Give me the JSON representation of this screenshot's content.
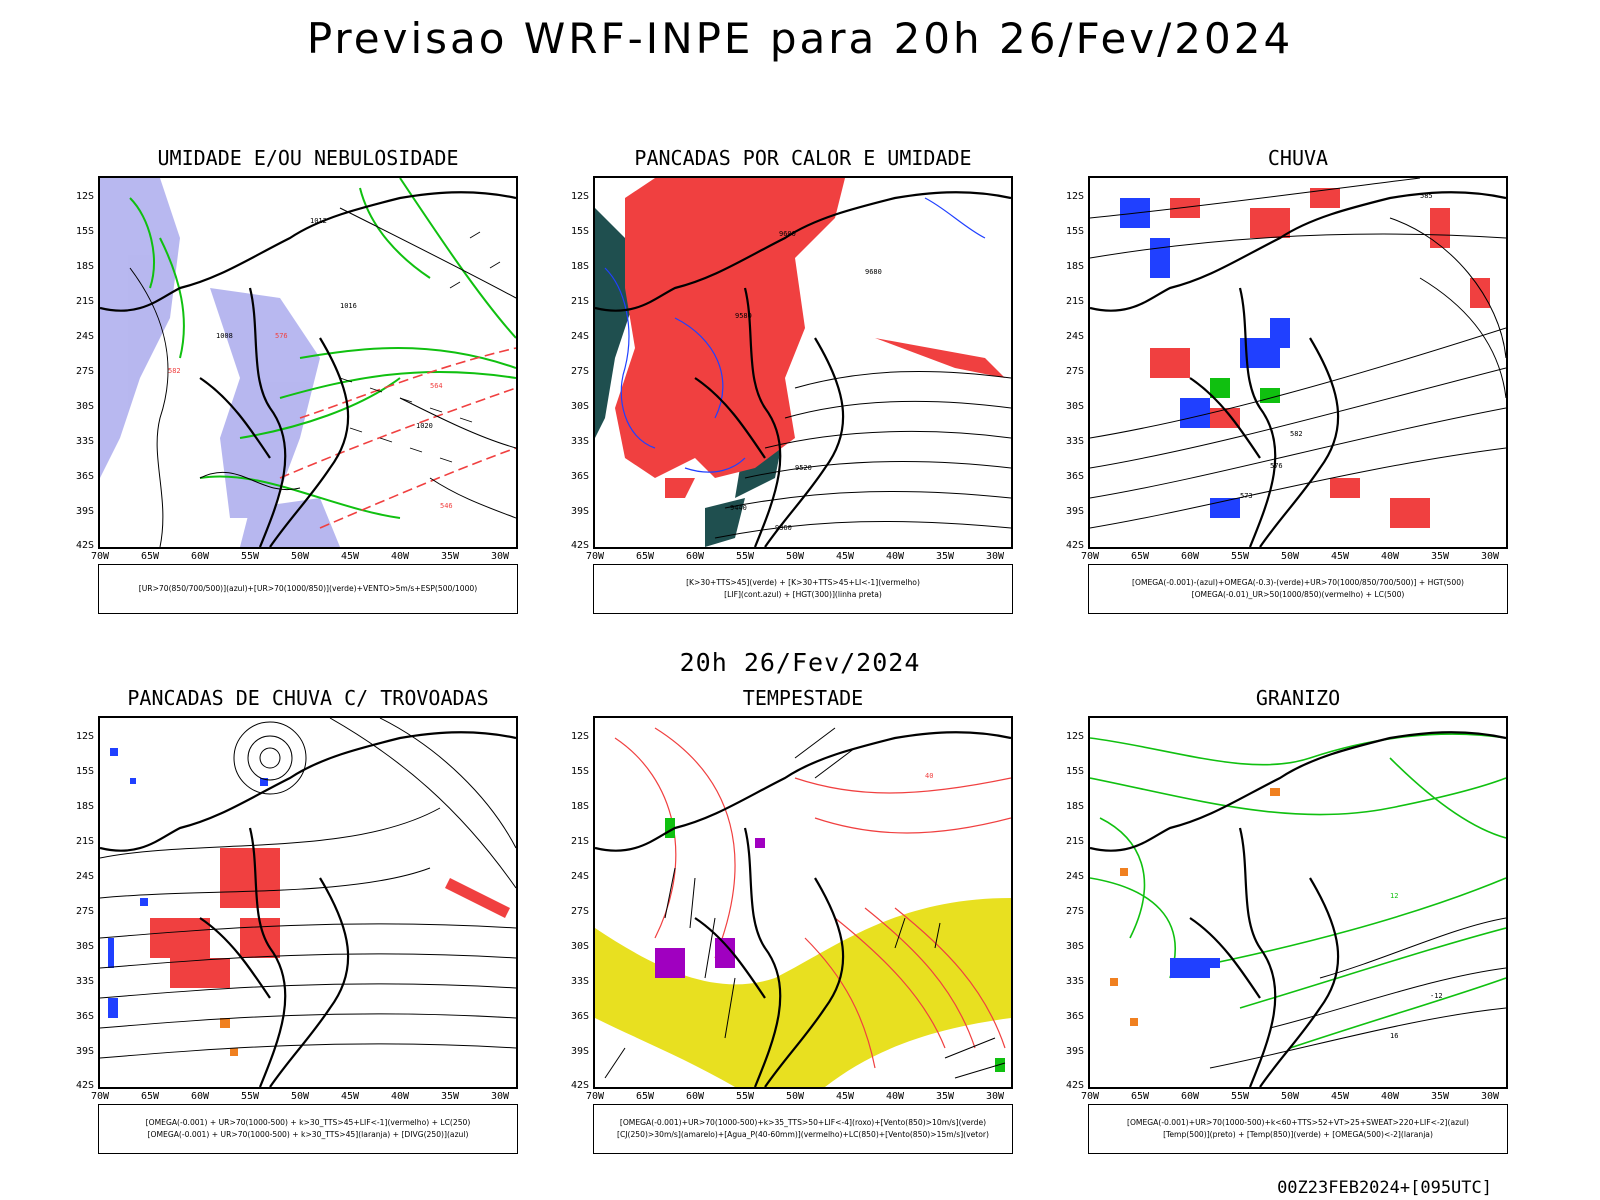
{
  "header": {
    "title": "Previsao WRF-INPE  para 20h 26/Fev/2024"
  },
  "mid_date": "20h 26/Fev/2024",
  "footer": "00Z23FEB2024+[095UTC]",
  "axes": {
    "lat_labels": [
      "12S",
      "15S",
      "18S",
      "21S",
      "24S",
      "27S",
      "30S",
      "33S",
      "36S",
      "39S",
      "42S"
    ],
    "lon_labels": [
      "70W",
      "65W",
      "60W",
      "55W",
      "50W",
      "45W",
      "40W",
      "35W",
      "30W"
    ]
  },
  "colors": {
    "red": "#f04040",
    "blue": "#2040ff",
    "green": "#10c010",
    "lavender": "#b0b0ee",
    "dark_teal": "#1f4f4f",
    "yellow": "#e8e020",
    "orange": "#f08020",
    "purple": "#a000c0"
  },
  "panels": [
    {
      "title": "UMIDADE E/OU NEBULOSIDADE",
      "legend": [
        "[UR>70(850/700/500)](azul)+[UR>70(1000/850)](verde)+VENTO>5m/s+ESP(500/1000)"
      ],
      "contour_labels": [
        "1012",
        "1016",
        "1008",
        "1020",
        "576",
        "582",
        "564",
        "546"
      ]
    },
    {
      "title": "PANCADAS POR CALOR E UMIDADE",
      "legend": [
        "[K>30+TTS>45](verde) + [K>30+TTS>45+LI<-1](vermelho)",
        "[LIF](cont.azul) + [HGT(300)](linha preta)"
      ],
      "contour_labels": [
        "9600",
        "9680",
        "9580",
        "9520",
        "9440",
        "9360"
      ]
    },
    {
      "title": "CHUVA",
      "legend": [
        "[OMEGA(-0.001)-(azul)+OMEGA(-0.3)-(verde)+UR>70(1000/850/700/500)] + HGT(500)",
        "[OMEGA(-0.01)_UR>50(1000/850)(vermelho) + LC(500)"
      ],
      "contour_labels": [
        "585",
        "582",
        "576",
        "573"
      ]
    },
    {
      "title": "PANCADAS DE CHUVA C/ TROVOADAS",
      "legend": [
        "[OMEGA(-0.001) + UR>70(1000-500) + k>30_TTS>45+LIF<-1](vermelho) + LC(250)",
        "[OMEGA(-0.001) + UR>70(1000-500) + k>30_TTS>45](laranja) + [DIVG(250)](azul)"
      ],
      "contour_labels": []
    },
    {
      "title": "TEMPESTADE",
      "legend": [
        "[OMEGA(-0.001)+UR>70(1000-500)+k>35_TTS>50+LIF<-4](roxo)+[Vento(850)>10m/s](verde)",
        "[CJ(250)>30m/s](amarelo)+[Agua_P(40-60mm)](vermelho)+LC(850)+[Vento(850)>15m/s](vetor)"
      ],
      "contour_labels": [
        "40"
      ]
    },
    {
      "title": "GRANIZO",
      "legend": [
        "[OMEGA(-0.001)+UR>70(1000-500)+k<60+TTS>52+VT>25+SWEAT>220+LIF<-2](azul)",
        "[Temp(500)](preto) + [Temp(850)](verde) + [OMEGA(500)<-2](laranja)"
      ],
      "contour_labels": [
        "-12",
        "16",
        "12"
      ]
    }
  ]
}
